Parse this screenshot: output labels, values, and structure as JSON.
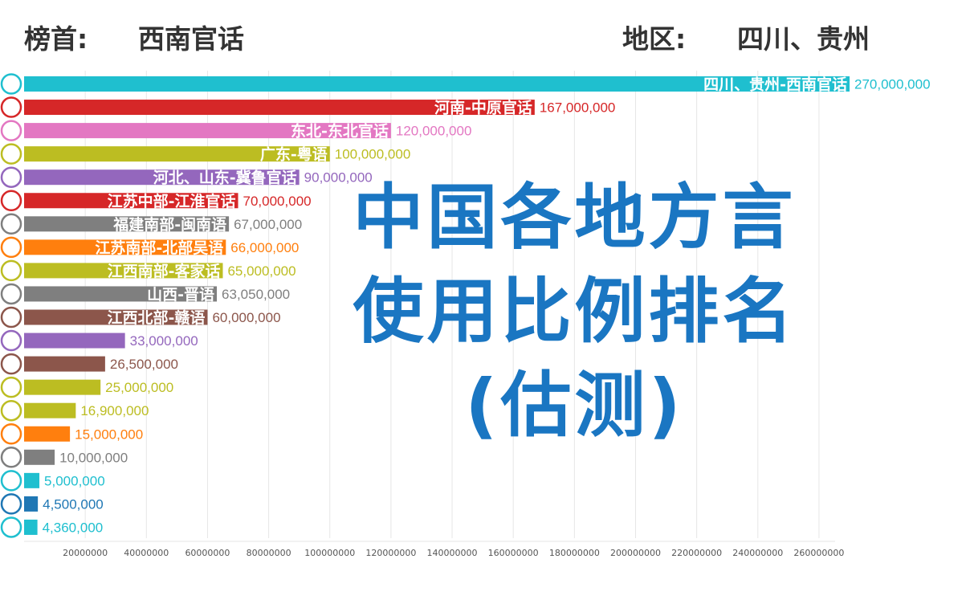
{
  "header": {
    "rank_label": "榜首:",
    "rank_value": "西南官话",
    "region_label": "地区:",
    "region_value": "四川、贵州"
  },
  "overlay": {
    "line1": "中国各地方言",
    "line2": "使用比例排名",
    "line3": "(估测)"
  },
  "chart_data": {
    "type": "bar",
    "orientation": "horizontal",
    "title": "",
    "xlabel": "",
    "ylabel": "",
    "xlim": [
      0,
      270000000
    ],
    "xticks": [
      20000000,
      40000000,
      60000000,
      80000000,
      100000000,
      120000000,
      140000000,
      160000000,
      180000000,
      200000000,
      220000000,
      240000000,
      260000000
    ],
    "grid": "vertical",
    "legend": "none",
    "series": [
      {
        "label": "四川、贵州-西南官话",
        "value": 270000000,
        "value_label": "270,000,000",
        "color": "#1fbfcf"
      },
      {
        "label": "河南-中原官话",
        "value": 167000000,
        "value_label": "167,000,000",
        "color": "#d62728"
      },
      {
        "label": "东北-东北官话",
        "value": 120000000,
        "value_label": "120,000,000",
        "color": "#e377c2"
      },
      {
        "label": "广东-粤语",
        "value": 100000000,
        "value_label": "100,000,000",
        "color": "#bcbd22"
      },
      {
        "label": "河北、山东-冀鲁官话",
        "value": 90000000,
        "value_label": "90,000,000",
        "color": "#9467bd"
      },
      {
        "label": "江苏中部-江淮官话",
        "value": 70000000,
        "value_label": "70,000,000",
        "color": "#d62728"
      },
      {
        "label": "福建南部-闽南语",
        "value": 67000000,
        "value_label": "67,000,000",
        "color": "#7f7f7f"
      },
      {
        "label": "江苏南部-北部吴语",
        "value": 66000000,
        "value_label": "66,000,000",
        "color": "#ff7f0e"
      },
      {
        "label": "江西南部-客家话",
        "value": 65000000,
        "value_label": "65,000,000",
        "color": "#bcbd22"
      },
      {
        "label": "山西-晋语",
        "value": 63050000,
        "value_label": "63,050,000",
        "color": "#7f7f7f"
      },
      {
        "label": "江西北部-赣语",
        "value": 60000000,
        "value_label": "60,000,000",
        "color": "#8c564b"
      },
      {
        "label": "",
        "value": 33000000,
        "value_label": "33,000,000",
        "color": "#9467bd"
      },
      {
        "label": "",
        "value": 26500000,
        "value_label": "26,500,000",
        "color": "#8c564b"
      },
      {
        "label": "",
        "value": 25000000,
        "value_label": "25,000,000",
        "color": "#bcbd22"
      },
      {
        "label": "",
        "value": 16900000,
        "value_label": "16,900,000",
        "color": "#bcbd22"
      },
      {
        "label": "",
        "value": 15000000,
        "value_label": "15,000,000",
        "color": "#ff7f0e"
      },
      {
        "label": "",
        "value": 10000000,
        "value_label": "10,000,000",
        "color": "#7f7f7f"
      },
      {
        "label": "",
        "value": 5000000,
        "value_label": "5,000,000",
        "color": "#1fbfcf"
      },
      {
        "label": "",
        "value": 4500000,
        "value_label": "4,500,000",
        "color": "#1f77b4"
      },
      {
        "label": "",
        "value": 4360000,
        "value_label": "4,360,000",
        "color": "#1fbfcf"
      }
    ]
  }
}
